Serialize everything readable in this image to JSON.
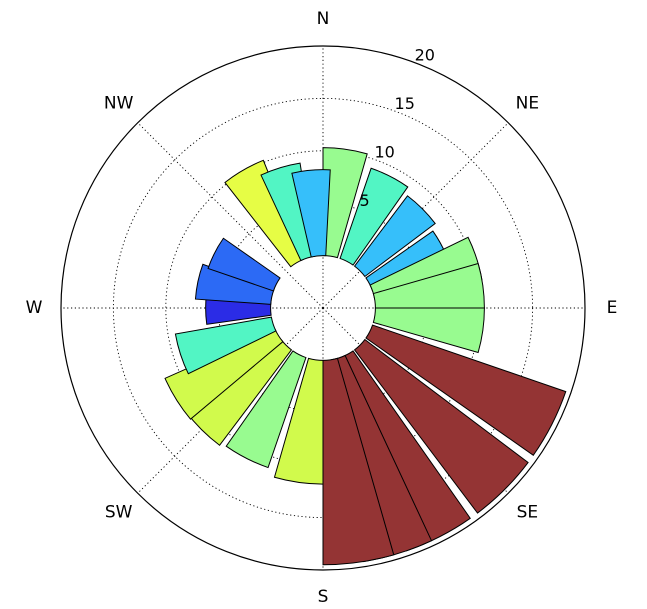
{
  "chart_data": {
    "type": "polar-bar",
    "direction_labels": [
      "N",
      "NE",
      "E",
      "SE",
      "S",
      "SW",
      "W",
      "NW"
    ],
    "direction_angles_deg": [
      0,
      45,
      90,
      135,
      180,
      225,
      270,
      315
    ],
    "radial_ticks": [
      5,
      10,
      15,
      20
    ],
    "radial_tick_labels": [
      "5",
      "10",
      "15",
      "20"
    ],
    "rlim": [
      0,
      20
    ],
    "inner_offset": 5,
    "grid": true,
    "bar_width_deg": 16,
    "bars": [
      {
        "angle_deg": 8,
        "value": 10.3,
        "color": "#98fb90"
      },
      {
        "angle_deg": 27,
        "value": 9.1,
        "color": "#52f5c4"
      },
      {
        "angle_deg": 45,
        "value": 8.4,
        "color": "#36bffa"
      },
      {
        "angle_deg": 63,
        "value": 7.8,
        "color": "#36bffa"
      },
      {
        "angle_deg": 72,
        "value": 10.4,
        "color": "#98fb90"
      },
      {
        "angle_deg": 82,
        "value": 10.4,
        "color": "#98fb90"
      },
      {
        "angle_deg": 98,
        "value": 10.4,
        "color": "#98fb90"
      },
      {
        "angle_deg": 117,
        "value": 19.5,
        "color": "#943434"
      },
      {
        "angle_deg": 135,
        "value": 19.5,
        "color": "#943434"
      },
      {
        "angle_deg": 153,
        "value": 19.5,
        "color": "#943434"
      },
      {
        "angle_deg": 163,
        "value": 19.5,
        "color": "#943434"
      },
      {
        "angle_deg": 172,
        "value": 19.5,
        "color": "#943434"
      },
      {
        "angle_deg": 188,
        "value": 11.8,
        "color": "#d1fa4c"
      },
      {
        "angle_deg": 207,
        "value": 11.1,
        "color": "#98fb90"
      },
      {
        "angle_deg": 225,
        "value": 11.4,
        "color": "#d1fa4c"
      },
      {
        "angle_deg": 238,
        "value": 11.5,
        "color": "#d1fa4c"
      },
      {
        "angle_deg": 252,
        "value": 9.3,
        "color": "#52f5c4"
      },
      {
        "angle_deg": 270,
        "value": 6.2,
        "color": "#2b2ce6"
      },
      {
        "angle_deg": 282,
        "value": 7.2,
        "color": "#2c6af5"
      },
      {
        "angle_deg": 297,
        "value": 6.6,
        "color": "#2c6af5"
      },
      {
        "angle_deg": 330,
        "value": 10.2,
        "color": "#e6fd45"
      },
      {
        "angle_deg": 343,
        "value": 9.0,
        "color": "#52f5c4"
      },
      {
        "angle_deg": 355,
        "value": 8.2,
        "color": "#36bffa"
      }
    ]
  }
}
